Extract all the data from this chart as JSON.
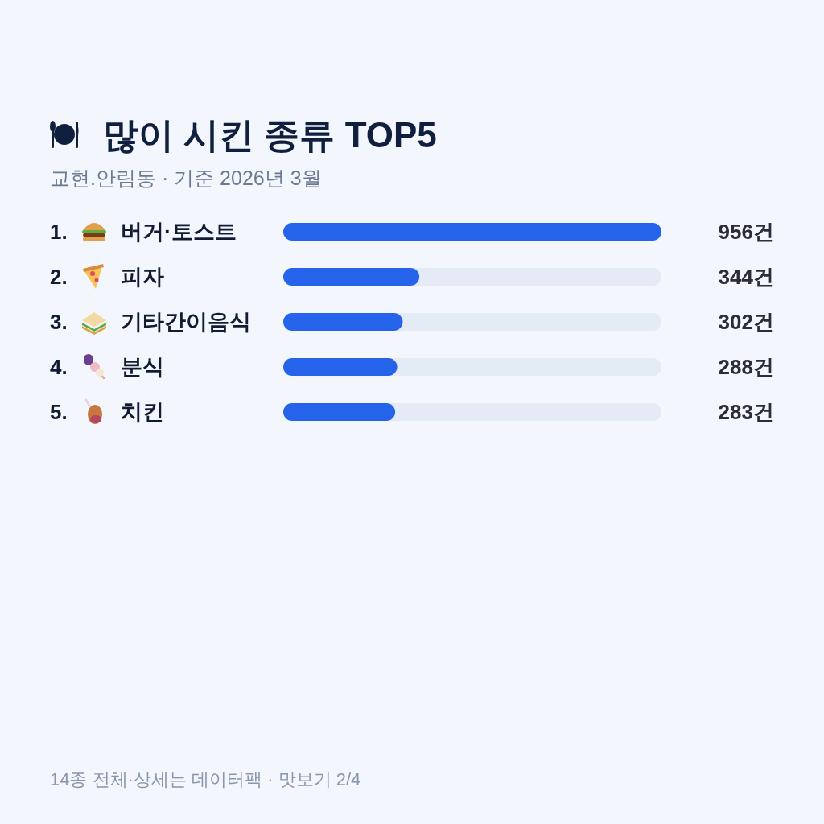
{
  "chart_data": {
    "type": "bar",
    "orientation": "horizontal",
    "title": "많이 시킨 종류 TOP5",
    "subtitle": "교현.안림동 · 기준 2026년 3월",
    "categories": [
      "1. 버거·토스트",
      "2. 피자",
      "3. 기타간이음식",
      "4. 분식",
      "5. 치킨"
    ],
    "values": [
      956,
      344,
      302,
      288,
      283
    ],
    "color": "#2563eb",
    "value_labels": [
      "956건",
      "344건",
      "302건",
      "288건",
      "283건"
    ],
    "xlim": [
      0,
      956
    ],
    "tick_labels": "y",
    "annotations": [
      "14종 전체·상세는 데이터팩 · 맛보기 2/4"
    ]
  }
}
